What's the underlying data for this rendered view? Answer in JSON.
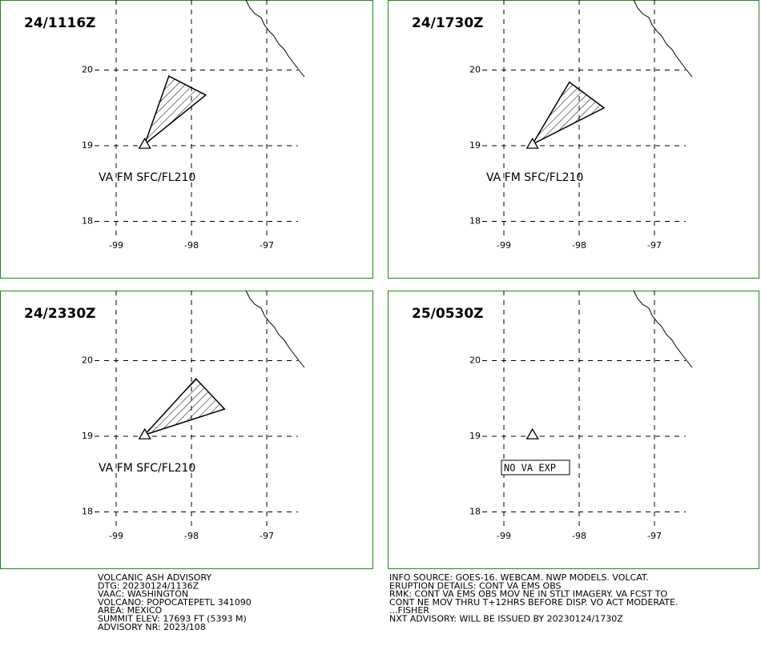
{
  "volcano": {
    "lon": -98.62,
    "lat": 19.02
  },
  "panels": [
    {
      "time": "24/1116Z",
      "lat_ticks": [
        20,
        19,
        18
      ],
      "lon_ticks": [
        -99,
        -98,
        -97
      ],
      "ash_polygon": {
        "lon": [
          -98.62,
          -98.3,
          -97.81
        ],
        "lat": [
          19.02,
          19.92,
          19.67
        ]
      },
      "label": "VA FM SFC/FL210"
    },
    {
      "time": "24/1730Z",
      "lat_ticks": [
        20,
        19,
        18
      ],
      "lon_ticks": [
        -99,
        -98,
        -97
      ],
      "ash_polygon": {
        "lon": [
          -98.62,
          -98.13,
          -97.67
        ],
        "lat": [
          19.02,
          19.84,
          19.5
        ]
      },
      "label": "VA FM SFC/FL210"
    },
    {
      "time": "24/2330Z",
      "lat_ticks": [
        20,
        19,
        18
      ],
      "lon_ticks": [
        -99,
        -98,
        -97
      ],
      "ash_polygon": {
        "lon": [
          -98.62,
          -97.94,
          -97.56
        ],
        "lat": [
          19.02,
          19.76,
          19.36
        ]
      },
      "label": "VA FM SFC/FL210"
    },
    {
      "time": "25/0530Z",
      "lat_ticks": [
        20,
        19,
        18
      ],
      "lon_ticks": [
        -99,
        -98,
        -97
      ],
      "label": "NO VA EXP"
    }
  ],
  "advisory": {
    "left": [
      "VOLCANIC ASH ADVISORY",
      "DTG: 20230124/1136Z",
      "VAAC: WASHINGTON",
      "VOLCANO: POPOCATEPETL 341090",
      "AREA: MEXICO",
      "SUMMIT ELEV: 17693 FT (5393 M)",
      "ADVISORY NR: 2023/108"
    ],
    "right": [
      "INFO SOURCE: GOES-16. WEBCAM. NWP MODELS. VOLCAT.",
      "ERUPTION DETAILS: CONT VA EMS OBS",
      "RMK: CONT VA EMS OBS MOV NE IN STLT IMAGERY. VA FCST TO",
      "CONT NE MOV THRU T+12HRS BEFORE DISP. VO ACT MODERATE.",
      "...FISHER",
      "NXT ADVISORY: WILL BE ISSUED BY 20230124/1730Z"
    ]
  }
}
